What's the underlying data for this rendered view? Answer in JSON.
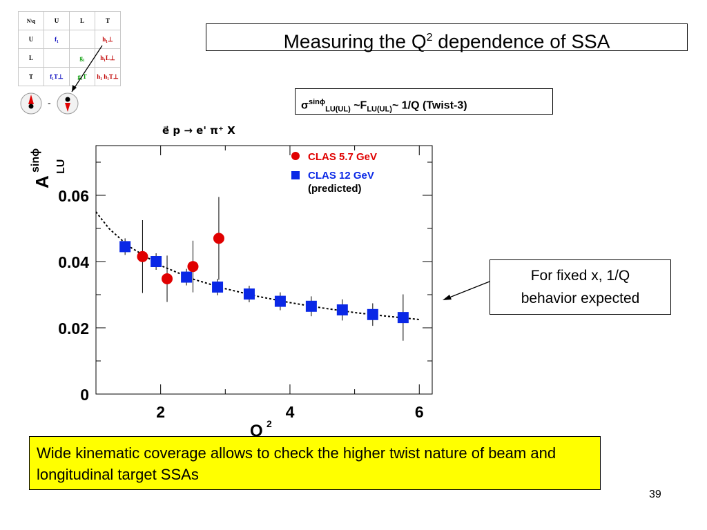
{
  "slide": {
    "title_main": "Measuring the Q",
    "title_sup": "2",
    "title_rest": " dependence of SSA",
    "sigma_box": {
      "sigma": "σ",
      "sup": "sinϕ",
      "sub1": "LU(UL)",
      "mid": " ~F",
      "sub2": "LU(UL)",
      "tail": "~ 1/Q (Twist-3)"
    },
    "note_line1": "For fixed x,  1/Q",
    "note_line2": "behavior expected",
    "yellow_text": "Wide kinematic coverage allows to check the higher twist nature of beam and longitudinal target SSAs",
    "slide_number": "39",
    "colors": {
      "red": "#e00000",
      "blue": "#0a28e6",
      "yellow": "#ffff00"
    }
  },
  "tmd_table": {
    "corner": "N\\q",
    "headers": [
      "U",
      "L",
      "T"
    ],
    "rows": [
      {
        "label": "U",
        "cells": [
          "f₁",
          "",
          "h₁⊥"
        ]
      },
      {
        "label": "L",
        "cells": [
          "",
          "g₁",
          "h₁L⊥"
        ]
      },
      {
        "label": "T",
        "cells": [
          "f₁T⊥",
          "g₁T",
          "h₁ h₁T⊥"
        ]
      }
    ],
    "cell_colors": [
      [
        "#1010c0",
        "",
        "#c00000"
      ],
      [
        "",
        "#10a010",
        "#c00000"
      ],
      [
        "#1010c0",
        "#10a010",
        "#c00000"
      ]
    ],
    "minus_sign": "-",
    "icons": [
      "spin-circle-icon-up",
      "spin-circle-icon-down"
    ]
  },
  "chart_data": {
    "type": "scatter",
    "title": "e⃗ p → e' π⁺ X",
    "xlabel": "Q",
    "xlabel_sup": "2",
    "ylabel": "A",
    "ylabel_sup": "sinϕ",
    "ylabel_sub": "LU",
    "xlim": [
      1.0,
      6.2
    ],
    "ylim": [
      0,
      0.075
    ],
    "x_ticks": [
      2,
      4,
      6
    ],
    "x_tick_labels": [
      "2",
      "4",
      "6"
    ],
    "y_ticks": [
      0,
      0.02,
      0.04,
      0.06
    ],
    "y_tick_labels": [
      "0",
      "0.02",
      "0.04",
      "0.06"
    ],
    "legend_position": "top-right",
    "series": [
      {
        "name": "CLAS 5.7 GeV",
        "marker": "circle",
        "color": "#e00000",
        "points": [
          {
            "x": 1.72,
            "y": 0.0415,
            "err": 0.011
          },
          {
            "x": 2.1,
            "y": 0.0348,
            "err": 0.007
          },
          {
            "x": 2.5,
            "y": 0.0385,
            "err": 0.0078
          },
          {
            "x": 2.9,
            "y": 0.047,
            "err": 0.0125
          }
        ]
      },
      {
        "name": "CLAS 12 GeV",
        "note": "(predicted)",
        "marker": "square",
        "color": "#0a28e6",
        "points": [
          {
            "x": 1.45,
            "y": 0.0445,
            "err": 0.0025
          },
          {
            "x": 1.93,
            "y": 0.04,
            "err": 0.0025
          },
          {
            "x": 2.4,
            "y": 0.0353,
            "err": 0.0025
          },
          {
            "x": 2.88,
            "y": 0.0323,
            "err": 0.0025
          },
          {
            "x": 3.37,
            "y": 0.0302,
            "err": 0.0025
          },
          {
            "x": 3.85,
            "y": 0.028,
            "err": 0.0027
          },
          {
            "x": 4.33,
            "y": 0.0265,
            "err": 0.003
          },
          {
            "x": 4.81,
            "y": 0.0254,
            "err": 0.0032
          },
          {
            "x": 5.28,
            "y": 0.024,
            "err": 0.0034
          },
          {
            "x": 5.75,
            "y": 0.0231,
            "err": 0.007
          }
        ]
      }
    ],
    "fit_curve": {
      "style": "dotted",
      "color": "#000000",
      "x": [
        1.0,
        1.2,
        1.5,
        2.0,
        2.5,
        3.0,
        3.5,
        4.0,
        4.5,
        5.0,
        5.5,
        6.0
      ],
      "y": [
        0.055,
        0.05,
        0.0447,
        0.0388,
        0.0347,
        0.0318,
        0.0295,
        0.0276,
        0.026,
        0.0246,
        0.0235,
        0.0225
      ]
    }
  }
}
